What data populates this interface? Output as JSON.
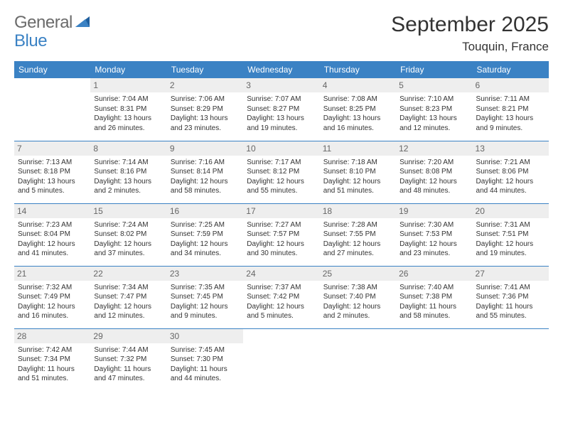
{
  "brand": {
    "word1": "General",
    "word2": "Blue"
  },
  "colors": {
    "header_bg": "#3b82c4",
    "header_text": "#ffffff",
    "daynum_bg": "#eeeeee",
    "daynum_text": "#666666",
    "body_text": "#333333",
    "row_border": "#3b82c4",
    "logo_gray": "#6b6b6b",
    "logo_blue": "#3b82c4"
  },
  "title": "September 2025",
  "location": "Touquin, France",
  "weekdays": [
    "Sunday",
    "Monday",
    "Tuesday",
    "Wednesday",
    "Thursday",
    "Friday",
    "Saturday"
  ],
  "weeks": [
    [
      {
        "day": "",
        "empty": true
      },
      {
        "day": "1",
        "sunrise": "Sunrise: 7:04 AM",
        "sunset": "Sunset: 8:31 PM",
        "daylight": "Daylight: 13 hours and 26 minutes."
      },
      {
        "day": "2",
        "sunrise": "Sunrise: 7:06 AM",
        "sunset": "Sunset: 8:29 PM",
        "daylight": "Daylight: 13 hours and 23 minutes."
      },
      {
        "day": "3",
        "sunrise": "Sunrise: 7:07 AM",
        "sunset": "Sunset: 8:27 PM",
        "daylight": "Daylight: 13 hours and 19 minutes."
      },
      {
        "day": "4",
        "sunrise": "Sunrise: 7:08 AM",
        "sunset": "Sunset: 8:25 PM",
        "daylight": "Daylight: 13 hours and 16 minutes."
      },
      {
        "day": "5",
        "sunrise": "Sunrise: 7:10 AM",
        "sunset": "Sunset: 8:23 PM",
        "daylight": "Daylight: 13 hours and 12 minutes."
      },
      {
        "day": "6",
        "sunrise": "Sunrise: 7:11 AM",
        "sunset": "Sunset: 8:21 PM",
        "daylight": "Daylight: 13 hours and 9 minutes."
      }
    ],
    [
      {
        "day": "7",
        "sunrise": "Sunrise: 7:13 AM",
        "sunset": "Sunset: 8:18 PM",
        "daylight": "Daylight: 13 hours and 5 minutes."
      },
      {
        "day": "8",
        "sunrise": "Sunrise: 7:14 AM",
        "sunset": "Sunset: 8:16 PM",
        "daylight": "Daylight: 13 hours and 2 minutes."
      },
      {
        "day": "9",
        "sunrise": "Sunrise: 7:16 AM",
        "sunset": "Sunset: 8:14 PM",
        "daylight": "Daylight: 12 hours and 58 minutes."
      },
      {
        "day": "10",
        "sunrise": "Sunrise: 7:17 AM",
        "sunset": "Sunset: 8:12 PM",
        "daylight": "Daylight: 12 hours and 55 minutes."
      },
      {
        "day": "11",
        "sunrise": "Sunrise: 7:18 AM",
        "sunset": "Sunset: 8:10 PM",
        "daylight": "Daylight: 12 hours and 51 minutes."
      },
      {
        "day": "12",
        "sunrise": "Sunrise: 7:20 AM",
        "sunset": "Sunset: 8:08 PM",
        "daylight": "Daylight: 12 hours and 48 minutes."
      },
      {
        "day": "13",
        "sunrise": "Sunrise: 7:21 AM",
        "sunset": "Sunset: 8:06 PM",
        "daylight": "Daylight: 12 hours and 44 minutes."
      }
    ],
    [
      {
        "day": "14",
        "sunrise": "Sunrise: 7:23 AM",
        "sunset": "Sunset: 8:04 PM",
        "daylight": "Daylight: 12 hours and 41 minutes."
      },
      {
        "day": "15",
        "sunrise": "Sunrise: 7:24 AM",
        "sunset": "Sunset: 8:02 PM",
        "daylight": "Daylight: 12 hours and 37 minutes."
      },
      {
        "day": "16",
        "sunrise": "Sunrise: 7:25 AM",
        "sunset": "Sunset: 7:59 PM",
        "daylight": "Daylight: 12 hours and 34 minutes."
      },
      {
        "day": "17",
        "sunrise": "Sunrise: 7:27 AM",
        "sunset": "Sunset: 7:57 PM",
        "daylight": "Daylight: 12 hours and 30 minutes."
      },
      {
        "day": "18",
        "sunrise": "Sunrise: 7:28 AM",
        "sunset": "Sunset: 7:55 PM",
        "daylight": "Daylight: 12 hours and 27 minutes."
      },
      {
        "day": "19",
        "sunrise": "Sunrise: 7:30 AM",
        "sunset": "Sunset: 7:53 PM",
        "daylight": "Daylight: 12 hours and 23 minutes."
      },
      {
        "day": "20",
        "sunrise": "Sunrise: 7:31 AM",
        "sunset": "Sunset: 7:51 PM",
        "daylight": "Daylight: 12 hours and 19 minutes."
      }
    ],
    [
      {
        "day": "21",
        "sunrise": "Sunrise: 7:32 AM",
        "sunset": "Sunset: 7:49 PM",
        "daylight": "Daylight: 12 hours and 16 minutes."
      },
      {
        "day": "22",
        "sunrise": "Sunrise: 7:34 AM",
        "sunset": "Sunset: 7:47 PM",
        "daylight": "Daylight: 12 hours and 12 minutes."
      },
      {
        "day": "23",
        "sunrise": "Sunrise: 7:35 AM",
        "sunset": "Sunset: 7:45 PM",
        "daylight": "Daylight: 12 hours and 9 minutes."
      },
      {
        "day": "24",
        "sunrise": "Sunrise: 7:37 AM",
        "sunset": "Sunset: 7:42 PM",
        "daylight": "Daylight: 12 hours and 5 minutes."
      },
      {
        "day": "25",
        "sunrise": "Sunrise: 7:38 AM",
        "sunset": "Sunset: 7:40 PM",
        "daylight": "Daylight: 12 hours and 2 minutes."
      },
      {
        "day": "26",
        "sunrise": "Sunrise: 7:40 AM",
        "sunset": "Sunset: 7:38 PM",
        "daylight": "Daylight: 11 hours and 58 minutes."
      },
      {
        "day": "27",
        "sunrise": "Sunrise: 7:41 AM",
        "sunset": "Sunset: 7:36 PM",
        "daylight": "Daylight: 11 hours and 55 minutes."
      }
    ],
    [
      {
        "day": "28",
        "sunrise": "Sunrise: 7:42 AM",
        "sunset": "Sunset: 7:34 PM",
        "daylight": "Daylight: 11 hours and 51 minutes."
      },
      {
        "day": "29",
        "sunrise": "Sunrise: 7:44 AM",
        "sunset": "Sunset: 7:32 PM",
        "daylight": "Daylight: 11 hours and 47 minutes."
      },
      {
        "day": "30",
        "sunrise": "Sunrise: 7:45 AM",
        "sunset": "Sunset: 7:30 PM",
        "daylight": "Daylight: 11 hours and 44 minutes."
      },
      {
        "day": "",
        "empty": true
      },
      {
        "day": "",
        "empty": true
      },
      {
        "day": "",
        "empty": true
      },
      {
        "day": "",
        "empty": true
      }
    ]
  ]
}
